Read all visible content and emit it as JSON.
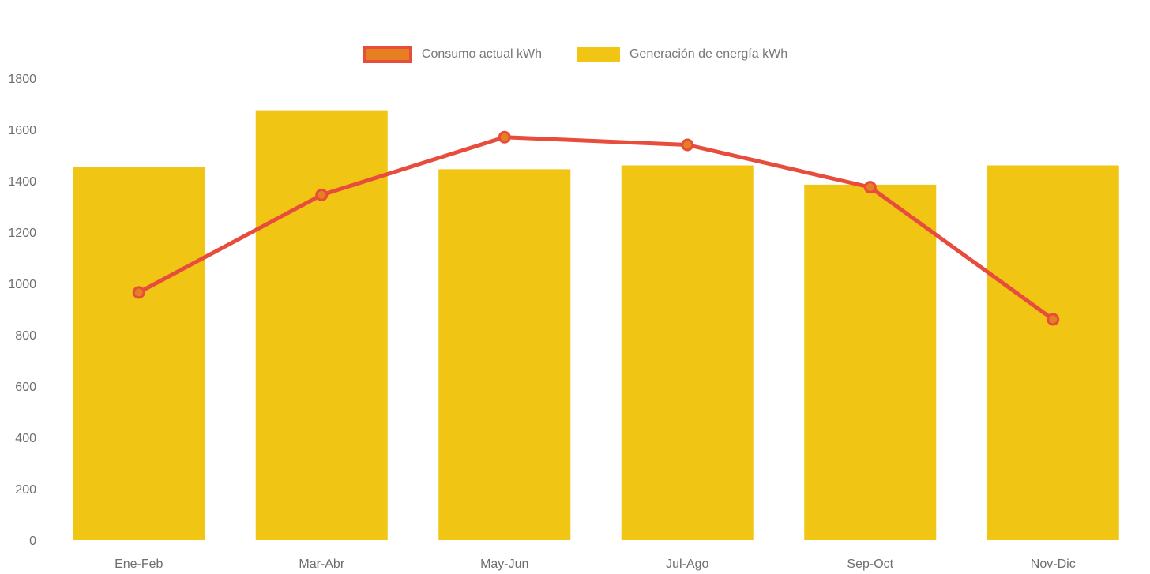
{
  "page": {
    "background_color": "#ffffff"
  },
  "legend": {
    "position": "top-center",
    "text_color": "#777777",
    "items": [
      {
        "label": "Consumo actual kWh",
        "swatch_fill": "#e67e22",
        "swatch_border": "#e74c3c",
        "series_type": "line"
      },
      {
        "label": "Generación de energía kWh",
        "swatch_fill": "#f0c514",
        "swatch_border": "",
        "series_type": "bar"
      }
    ]
  },
  "chart_data": {
    "type": "bar",
    "title": "",
    "xlabel": "",
    "ylabel": "",
    "categories": [
      "Ene-Feb",
      "Mar-Abr",
      "May-Jun",
      "Jul-Ago",
      "Sep-Oct",
      "Nov-Dic"
    ],
    "series": [
      {
        "name": "Consumo actual kWh",
        "type": "line",
        "values": [
          965,
          1345,
          1570,
          1540,
          1375,
          860
        ],
        "color": "#e74c3c",
        "point_fill": "#e67e22",
        "line_width": 5,
        "point_radius": 6.5
      },
      {
        "name": "Generación de energía kWh",
        "type": "bar",
        "values": [
          1455,
          1675,
          1445,
          1460,
          1385,
          1460
        ],
        "color": "#f0c514"
      }
    ],
    "ylim": [
      0,
      1800
    ],
    "yticks": [
      0,
      200,
      400,
      600,
      800,
      1000,
      1200,
      1400,
      1600,
      1800
    ],
    "grid": false,
    "legend_position": "top",
    "axis_text_color": "#6e6e6e"
  }
}
